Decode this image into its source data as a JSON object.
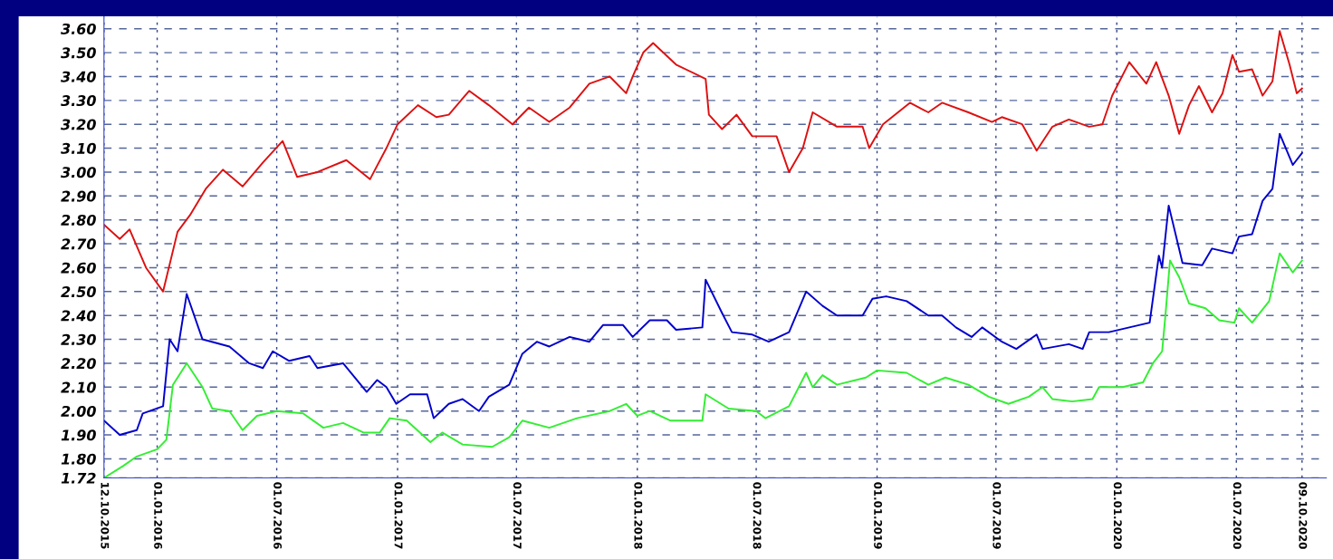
{
  "chart_data": {
    "type": "line",
    "grid": true,
    "marker": "none",
    "line_style": "solid",
    "legend": false,
    "xlim": [
      "2015-10-12",
      "2020-11-15"
    ],
    "ylim": [
      1.72,
      3.65
    ],
    "xticks": [
      {
        "value": "2015-10-12",
        "label": "12.10.2015"
      },
      {
        "value": "2016-01-01",
        "label": "01.01.2016"
      },
      {
        "value": "2016-07-01",
        "label": "01.07.2016"
      },
      {
        "value": "2017-01-01",
        "label": "01.01.2017"
      },
      {
        "value": "2017-07-01",
        "label": "01.07.2017"
      },
      {
        "value": "2018-01-01",
        "label": "01.01.2018"
      },
      {
        "value": "2018-07-01",
        "label": "01.07.2018"
      },
      {
        "value": "2019-01-01",
        "label": "01.01.2019"
      },
      {
        "value": "2019-07-01",
        "label": "01.07.2019"
      },
      {
        "value": "2020-01-01",
        "label": "01.01.2020"
      },
      {
        "value": "2020-07-01",
        "label": "01.07.2020"
      },
      {
        "value": "2020-10-09",
        "label": "09.10.2020"
      }
    ],
    "yticks": [
      {
        "value": 1.72,
        "label": "1.72"
      },
      {
        "value": 1.8,
        "label": "1.80"
      },
      {
        "value": 1.9,
        "label": "1.90"
      },
      {
        "value": 2.0,
        "label": "2.00"
      },
      {
        "value": 2.1,
        "label": "2.10"
      },
      {
        "value": 2.2,
        "label": "2.20"
      },
      {
        "value": 2.3,
        "label": "2.30"
      },
      {
        "value": 2.4,
        "label": "2.40"
      },
      {
        "value": 2.5,
        "label": "2.50"
      },
      {
        "value": 2.6,
        "label": "2.60"
      },
      {
        "value": 2.7,
        "label": "2.70"
      },
      {
        "value": 2.8,
        "label": "2.80"
      },
      {
        "value": 2.9,
        "label": "2.90"
      },
      {
        "value": 3.0,
        "label": "3.00"
      },
      {
        "value": 3.1,
        "label": "3.10"
      },
      {
        "value": 3.2,
        "label": "3.20"
      },
      {
        "value": 3.3,
        "label": "3.30"
      },
      {
        "value": 3.4,
        "label": "3.40"
      },
      {
        "value": 3.5,
        "label": "3.50"
      },
      {
        "value": 3.6,
        "label": "3.60"
      }
    ],
    "series": [
      {
        "color": "#dd1111",
        "x": [
          "2015-10-12",
          "2015-11-05",
          "2015-11-20",
          "2015-12-15",
          "2016-01-10",
          "2016-02-01",
          "2016-02-20",
          "2016-03-15",
          "2016-04-10",
          "2016-05-10",
          "2016-06-10",
          "2016-07-10",
          "2016-08-01",
          "2016-09-01",
          "2016-10-15",
          "2016-11-20",
          "2016-12-15",
          "2017-01-01",
          "2017-02-01",
          "2017-03-01",
          "2017-03-20",
          "2017-04-20",
          "2017-05-20",
          "2017-06-25",
          "2017-07-20",
          "2017-08-20",
          "2017-09-20",
          "2017-10-20",
          "2017-11-20",
          "2017-12-15",
          "2017-12-25",
          "2018-01-10",
          "2018-01-25",
          "2018-03-01",
          "2018-04-15",
          "2018-04-20",
          "2018-05-10",
          "2018-06-01",
          "2018-06-25",
          "2018-08-01",
          "2018-08-20",
          "2018-09-10",
          "2018-09-25",
          "2018-11-01",
          "2018-12-10",
          "2018-12-20",
          "2019-01-10",
          "2019-02-20",
          "2019-03-20",
          "2019-04-10",
          "2019-05-20",
          "2019-06-25",
          "2019-07-10",
          "2019-08-10",
          "2019-09-01",
          "2019-09-25",
          "2019-10-20",
          "2019-11-20",
          "2019-12-10",
          "2019-12-25",
          "2020-01-20",
          "2020-02-15",
          "2020-03-01",
          "2020-03-20",
          "2020-04-05",
          "2020-04-20",
          "2020-05-05",
          "2020-05-25",
          "2020-06-10",
          "2020-06-25",
          "2020-07-05",
          "2020-07-25",
          "2020-08-10",
          "2020-08-25",
          "2020-09-05",
          "2020-09-20",
          "2020-10-01",
          "2020-10-09"
        ],
        "values": [
          2.78,
          2.72,
          2.76,
          2.6,
          2.5,
          2.75,
          2.82,
          2.93,
          3.01,
          2.94,
          3.04,
          3.13,
          2.98,
          3.0,
          3.05,
          2.97,
          3.1,
          3.2,
          3.28,
          3.23,
          3.24,
          3.34,
          3.28,
          3.2,
          3.27,
          3.21,
          3.27,
          3.37,
          3.4,
          3.33,
          3.4,
          3.5,
          3.54,
          3.45,
          3.39,
          3.24,
          3.18,
          3.24,
          3.15,
          3.15,
          3.0,
          3.1,
          3.25,
          3.19,
          3.19,
          3.1,
          3.2,
          3.29,
          3.25,
          3.29,
          3.25,
          3.21,
          3.23,
          3.2,
          3.09,
          3.19,
          3.22,
          3.19,
          3.2,
          3.32,
          3.46,
          3.37,
          3.46,
          3.32,
          3.16,
          3.28,
          3.36,
          3.25,
          3.33,
          3.49,
          3.42,
          3.43,
          3.32,
          3.38,
          3.59,
          3.45,
          3.33,
          3.35
        ]
      },
      {
        "color": "#0000cc",
        "x": [
          "2015-10-12",
          "2015-11-05",
          "2015-12-01",
          "2015-12-10",
          "2016-01-10",
          "2016-01-20",
          "2016-02-01",
          "2016-02-15",
          "2016-03-10",
          "2016-04-20",
          "2016-05-20",
          "2016-06-10",
          "2016-06-25",
          "2016-07-20",
          "2016-08-20",
          "2016-09-01",
          "2016-10-10",
          "2016-11-15",
          "2016-12-01",
          "2016-12-15",
          "2016-12-30",
          "2017-01-20",
          "2017-02-15",
          "2017-02-25",
          "2017-03-20",
          "2017-04-10",
          "2017-05-05",
          "2017-05-20",
          "2017-06-20",
          "2017-07-10",
          "2017-08-01",
          "2017-08-20",
          "2017-09-20",
          "2017-10-20",
          "2017-11-10",
          "2017-12-10",
          "2017-12-25",
          "2018-01-20",
          "2018-02-15",
          "2018-03-01",
          "2018-04-10",
          "2018-04-15",
          "2018-05-10",
          "2018-05-25",
          "2018-06-25",
          "2018-07-20",
          "2018-08-20",
          "2018-09-15",
          "2018-10-10",
          "2018-11-01",
          "2018-12-10",
          "2018-12-25",
          "2019-01-15",
          "2019-02-15",
          "2019-03-20",
          "2019-04-10",
          "2019-05-01",
          "2019-05-25",
          "2019-06-10",
          "2019-07-10",
          "2019-08-01",
          "2019-09-01",
          "2019-09-10",
          "2019-10-20",
          "2019-11-10",
          "2019-11-20",
          "2019-12-20",
          "2020-01-20",
          "2020-02-20",
          "2020-03-05",
          "2020-03-10",
          "2020-03-20",
          "2020-04-10",
          "2020-05-10",
          "2020-05-25",
          "2020-06-25",
          "2020-07-05",
          "2020-07-25",
          "2020-08-10",
          "2020-08-25",
          "2020-09-05",
          "2020-09-25",
          "2020-10-09"
        ],
        "values": [
          1.96,
          1.9,
          1.92,
          1.99,
          2.02,
          2.3,
          2.25,
          2.49,
          2.3,
          2.27,
          2.2,
          2.18,
          2.25,
          2.21,
          2.23,
          2.18,
          2.2,
          2.08,
          2.13,
          2.1,
          2.03,
          2.07,
          2.07,
          1.97,
          2.03,
          2.05,
          2.0,
          2.06,
          2.11,
          2.24,
          2.29,
          2.27,
          2.31,
          2.29,
          2.36,
          2.36,
          2.31,
          2.38,
          2.38,
          2.34,
          2.35,
          2.55,
          2.41,
          2.33,
          2.32,
          2.29,
          2.33,
          2.5,
          2.44,
          2.4,
          2.4,
          2.47,
          2.48,
          2.46,
          2.4,
          2.4,
          2.35,
          2.31,
          2.35,
          2.29,
          2.26,
          2.32,
          2.26,
          2.28,
          2.26,
          2.33,
          2.33,
          2.35,
          2.37,
          2.65,
          2.6,
          2.86,
          2.62,
          2.61,
          2.68,
          2.66,
          2.73,
          2.74,
          2.88,
          2.93,
          3.16,
          3.03,
          3.08
        ]
      },
      {
        "color": "#33ee33",
        "x": [
          "2015-10-12",
          "2015-11-10",
          "2015-12-01",
          "2016-01-01",
          "2016-01-15",
          "2016-01-25",
          "2016-02-15",
          "2016-03-10",
          "2016-03-25",
          "2016-04-20",
          "2016-05-10",
          "2016-06-01",
          "2016-07-01",
          "2016-08-10",
          "2016-09-10",
          "2016-10-10",
          "2016-11-10",
          "2016-12-05",
          "2016-12-20",
          "2017-01-15",
          "2017-02-20",
          "2017-03-10",
          "2017-04-10",
          "2017-05-25",
          "2017-06-20",
          "2017-07-10",
          "2017-08-20",
          "2017-10-01",
          "2017-11-20",
          "2017-12-15",
          "2018-01-01",
          "2018-01-20",
          "2018-02-20",
          "2018-04-10",
          "2018-04-15",
          "2018-05-20",
          "2018-07-01",
          "2018-07-15",
          "2018-08-20",
          "2018-09-15",
          "2018-09-25",
          "2018-10-10",
          "2018-11-01",
          "2018-12-15",
          "2019-01-01",
          "2019-02-15",
          "2019-03-20",
          "2019-04-15",
          "2019-05-20",
          "2019-06-20",
          "2019-07-20",
          "2019-08-20",
          "2019-09-10",
          "2019-09-25",
          "2019-10-25",
          "2019-11-25",
          "2019-12-05",
          "2020-01-10",
          "2020-02-10",
          "2020-02-25",
          "2020-03-10",
          "2020-03-15",
          "2020-03-22",
          "2020-04-05",
          "2020-04-20",
          "2020-05-15",
          "2020-06-05",
          "2020-06-28",
          "2020-07-05",
          "2020-07-25",
          "2020-08-20",
          "2020-09-05",
          "2020-09-25",
          "2020-10-09"
        ],
        "values": [
          1.72,
          1.77,
          1.81,
          1.84,
          1.88,
          2.11,
          2.2,
          2.1,
          2.01,
          2.0,
          1.92,
          1.98,
          2.0,
          1.99,
          1.93,
          1.95,
          1.91,
          1.91,
          1.97,
          1.96,
          1.87,
          1.91,
          1.86,
          1.85,
          1.89,
          1.96,
          1.93,
          1.97,
          2.0,
          2.03,
          1.98,
          2.0,
          1.96,
          1.96,
          2.07,
          2.01,
          2.0,
          1.97,
          2.02,
          2.16,
          2.1,
          2.15,
          2.11,
          2.14,
          2.17,
          2.16,
          2.11,
          2.14,
          2.11,
          2.06,
          2.03,
          2.06,
          2.1,
          2.05,
          2.04,
          2.05,
          2.1,
          2.1,
          2.12,
          2.2,
          2.25,
          2.4,
          2.63,
          2.56,
          2.45,
          2.43,
          2.38,
          2.37,
          2.43,
          2.37,
          2.46,
          2.66,
          2.58,
          2.63
        ]
      }
    ]
  }
}
